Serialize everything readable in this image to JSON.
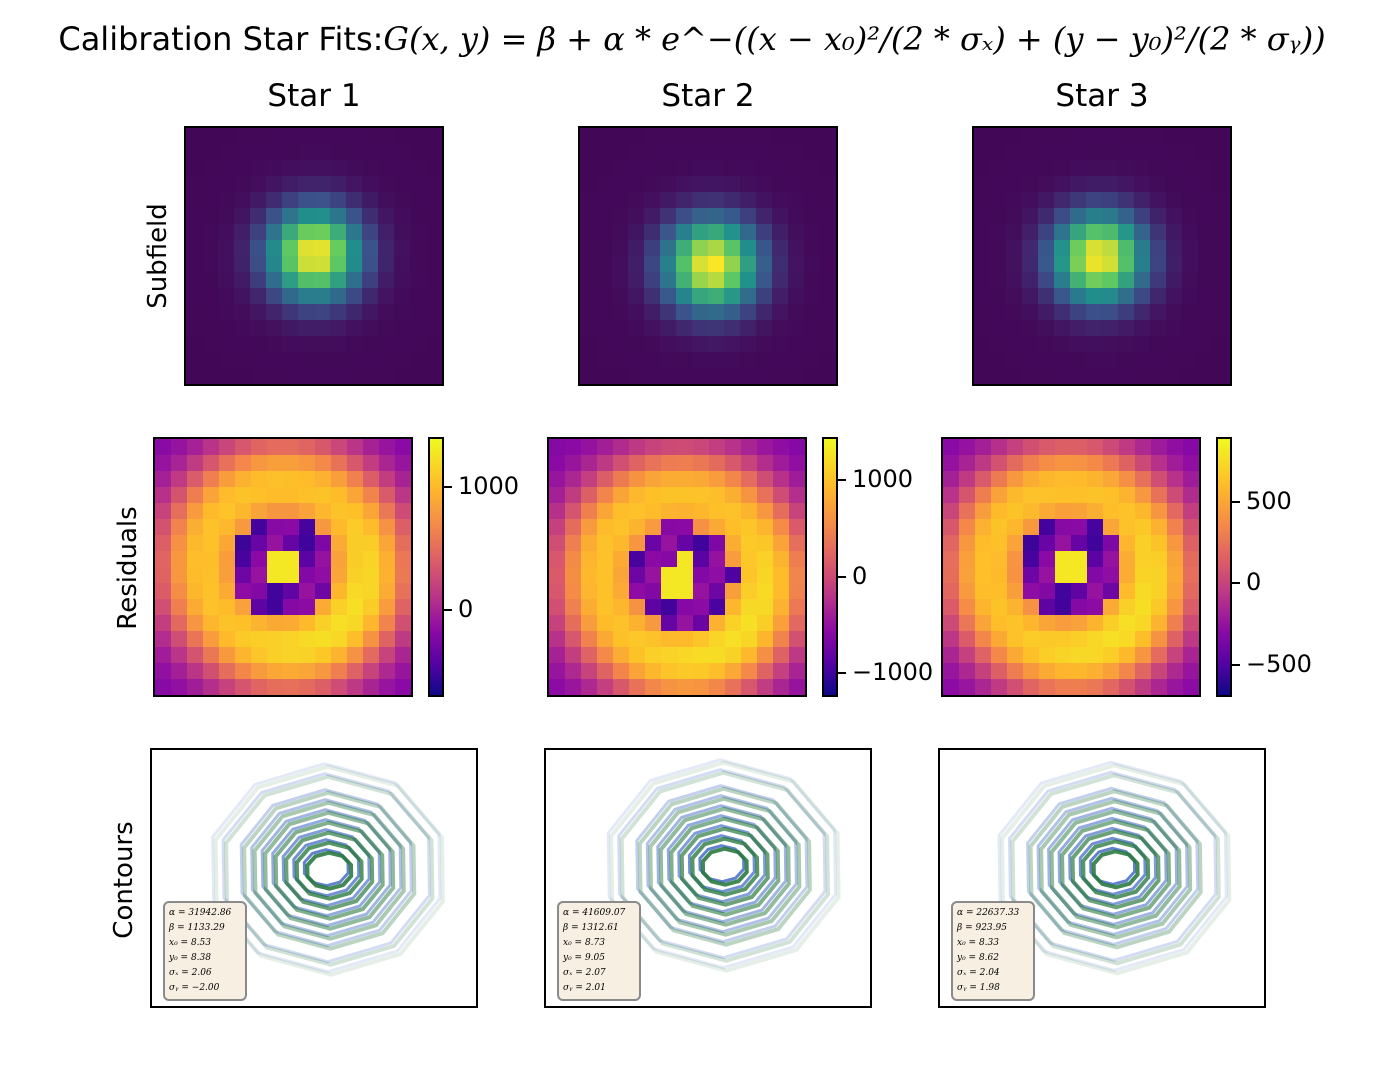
{
  "chart_data": {
    "type": "heatmap",
    "title": "Calibration Star Fits:",
    "formula": "G(x, y) = β + α * e^−((x − x₀)²/(2 * σₓ) + (y − y₀)²/(2 * σᵧ))",
    "row_labels": [
      "Subfield",
      "Residuals",
      "Contours"
    ],
    "grid_size": 16,
    "stars": [
      {
        "name": "Star 1",
        "colorbar": {
          "range": [
            -700,
            1400
          ],
          "ticks": [
            {
              "value": 1000,
              "label": "1000"
            },
            {
              "value": 0,
              "label": "0"
            }
          ]
        },
        "fit": {
          "alpha": 31942.86,
          "beta": 1133.29,
          "x0": 8.53,
          "y0": 8.38,
          "sigma_x": 2.06,
          "sigma_y": -2.0
        },
        "stat_lines": [
          "α = 31942.86",
          "β = 1133.29",
          "x₀ = 8.53",
          "y₀ = 8.38",
          "σₓ = 2.06",
          "σᵧ = −2.00"
        ]
      },
      {
        "name": "Star 2",
        "colorbar": {
          "range": [
            -1250,
            1450
          ],
          "ticks": [
            {
              "value": 1000,
              "label": "1000"
            },
            {
              "value": 0,
              "label": "0"
            },
            {
              "value": -1000,
              "label": "−1000"
            }
          ]
        },
        "fit": {
          "alpha": 41609.07,
          "beta": 1312.61,
          "x0": 8.73,
          "y0": 9.05,
          "sigma_x": 2.07,
          "sigma_y": 2.01
        },
        "stat_lines": [
          "α = 41609.07",
          "β = 1312.61",
          "x₀ = 8.73",
          "y₀ = 9.05",
          "σₓ = 2.07",
          "σᵧ = 2.01"
        ]
      },
      {
        "name": "Star 3",
        "colorbar": {
          "range": [
            -700,
            900
          ],
          "ticks": [
            {
              "value": 500,
              "label": "500"
            },
            {
              "value": 0,
              "label": "0"
            },
            {
              "value": -500,
              "label": "−500"
            }
          ]
        },
        "fit": {
          "alpha": 22637.33,
          "beta": 923.95,
          "x0": 8.33,
          "y0": 8.62,
          "sigma_x": 2.04,
          "sigma_y": 1.98
        },
        "stat_lines": [
          "α = 22637.33",
          "β = 923.95",
          "x₀ = 8.33",
          "y₀ = 8.62",
          "σₓ = 2.04",
          "σᵧ = 1.98"
        ]
      }
    ],
    "colormaps": {
      "subfield": "viridis",
      "residuals": "plasma",
      "contours": "green/blue lines"
    }
  }
}
